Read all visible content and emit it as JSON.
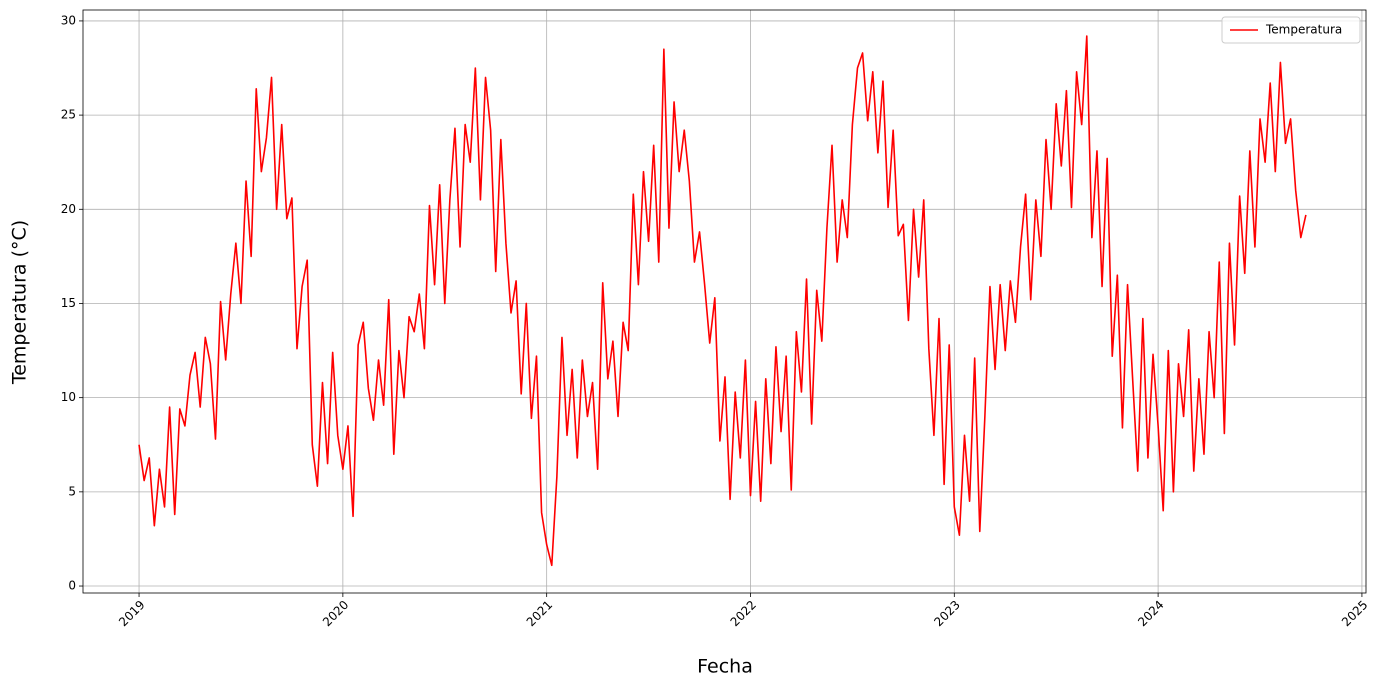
{
  "chart_data": {
    "type": "line",
    "x_label": "Fecha",
    "y_label": "Temperatura (°C)",
    "x": [
      2019,
      2019.025,
      2019.05,
      2019.075,
      2019.1,
      2019.125,
      2019.15,
      2019.175,
      2019.2,
      2019.225,
      2019.25,
      2019.275,
      2019.3,
      2019.325,
      2019.35,
      2019.375,
      2019.4,
      2019.425,
      2019.45,
      2019.475,
      2019.5,
      2019.525,
      2019.55,
      2019.575,
      2019.6,
      2019.625,
      2019.65,
      2019.675,
      2019.7,
      2019.725,
      2019.75,
      2019.775,
      2019.8,
      2019.825,
      2019.85,
      2019.875,
      2019.9,
      2019.925,
      2019.95,
      2019.975,
      2020,
      2020.025,
      2020.05,
      2020.075,
      2020.1,
      2020.125,
      2020.15,
      2020.175,
      2020.2,
      2020.225,
      2020.25,
      2020.275,
      2020.3,
      2020.325,
      2020.35,
      2020.375,
      2020.4,
      2020.425,
      2020.45,
      2020.475,
      2020.5,
      2020.525,
      2020.55,
      2020.575,
      2020.6,
      2020.625,
      2020.65,
      2020.675,
      2020.7,
      2020.725,
      2020.75,
      2020.775,
      2020.8,
      2020.825,
      2020.85,
      2020.875,
      2020.9,
      2020.925,
      2020.95,
      2020.975,
      2021,
      2021.025,
      2021.05,
      2021.075,
      2021.1,
      2021.125,
      2021.15,
      2021.175,
      2021.2,
      2021.225,
      2021.25,
      2021.275,
      2021.3,
      2021.325,
      2021.35,
      2021.375,
      2021.4,
      2021.425,
      2021.45,
      2021.475,
      2021.5,
      2021.525,
      2021.55,
      2021.575,
      2021.6,
      2021.625,
      2021.65,
      2021.675,
      2021.7,
      2021.725,
      2021.75,
      2021.775,
      2021.8,
      2021.825,
      2021.85,
      2021.875,
      2021.9,
      2021.925,
      2021.95,
      2021.975,
      2022,
      2022.025,
      2022.05,
      2022.075,
      2022.1,
      2022.125,
      2022.15,
      2022.175,
      2022.2,
      2022.225,
      2022.25,
      2022.275,
      2022.3,
      2022.325,
      2022.35,
      2022.375,
      2022.4,
      2022.425,
      2022.45,
      2022.475,
      2022.5,
      2022.525,
      2022.55,
      2022.575,
      2022.6,
      2022.625,
      2022.65,
      2022.675,
      2022.7,
      2022.725,
      2022.75,
      2022.775,
      2022.8,
      2022.825,
      2022.85,
      2022.875,
      2022.9,
      2022.925,
      2022.95,
      2022.975,
      2023,
      2023.025,
      2023.05,
      2023.075,
      2023.1,
      2023.125,
      2023.15,
      2023.175,
      2023.2,
      2023.225,
      2023.25,
      2023.275,
      2023.3,
      2023.325,
      2023.35,
      2023.375,
      2023.4,
      2023.425,
      2023.45,
      2023.475,
      2023.5,
      2023.525,
      2023.55,
      2023.575,
      2023.6,
      2023.625,
      2023.65,
      2023.675,
      2023.7,
      2023.725,
      2023.75,
      2023.775,
      2023.8,
      2023.825,
      2023.85,
      2023.875,
      2023.9,
      2023.925,
      2023.95,
      2023.975,
      2024,
      2024.025,
      2024.05,
      2024.075,
      2024.1,
      2024.125,
      2024.15,
      2024.175,
      2024.2,
      2024.225,
      2024.25,
      2024.275,
      2024.3,
      2024.325,
      2024.35,
      2024.375,
      2024.4,
      2024.425,
      2024.45,
      2024.475,
      2024.5,
      2024.525,
      2024.55,
      2024.575,
      2024.6,
      2024.625,
      2024.65,
      2024.675,
      2024.7,
      2024.725
    ],
    "series": [
      {
        "name": "Temperatura",
        "color": "#ff0000",
        "values": [
          7.5,
          5.6,
          6.8,
          3.2,
          6.2,
          4.2,
          9.5,
          3.8,
          9.4,
          8.5,
          11.2,
          12.4,
          9.5,
          13.2,
          11.8,
          7.8,
          15.1,
          12.0,
          15.5,
          18.2,
          15.0,
          21.5,
          17.5,
          26.4,
          22.0,
          23.8,
          27.0,
          20.0,
          24.5,
          19.5,
          20.6,
          12.6,
          15.9,
          17.3,
          7.5,
          5.3,
          10.8,
          6.5,
          12.4,
          8.0,
          6.2,
          8.5,
          3.7,
          12.8,
          14.0,
          10.5,
          8.8,
          12.0,
          9.6,
          15.2,
          7.0,
          12.5,
          10.0,
          14.3,
          13.5,
          15.5,
          12.6,
          20.2,
          16.0,
          21.3,
          15.0,
          20.5,
          24.3,
          18.0,
          24.5,
          22.5,
          27.5,
          20.5,
          27.0,
          24.2,
          16.7,
          23.7,
          18.2,
          14.5,
          16.2,
          10.2,
          15.0,
          8.9,
          12.2,
          3.9,
          2.2,
          1.1,
          5.8,
          13.2,
          8.0,
          11.5,
          6.8,
          12.0,
          9.0,
          10.8,
          6.2,
          16.1,
          11.0,
          13.0,
          9.0,
          14.0,
          12.5,
          20.8,
          16.0,
          22.0,
          18.3,
          23.4,
          17.2,
          28.5,
          19.0,
          25.7,
          22.0,
          24.2,
          21.5,
          17.2,
          18.8,
          16.0,
          12.9,
          15.3,
          7.7,
          11.1,
          4.6,
          10.3,
          6.8,
          12.0,
          4.8,
          9.8,
          4.5,
          11.0,
          6.5,
          12.7,
          8.2,
          12.2,
          5.1,
          13.5,
          10.3,
          16.3,
          8.6,
          15.7,
          13.0,
          19.0,
          23.4,
          17.2,
          20.5,
          18.5,
          24.5,
          27.5,
          28.3,
          24.7,
          27.3,
          23.0,
          26.8,
          20.1,
          24.2,
          18.6,
          19.2,
          14.1,
          20.0,
          16.4,
          20.5,
          12.6,
          8.0,
          14.2,
          5.4,
          12.8,
          4.2,
          2.7,
          8.0,
          4.5,
          12.1,
          2.9,
          9.0,
          15.9,
          11.5,
          16.0,
          12.5,
          16.2,
          14.0,
          18.0,
          20.8,
          15.2,
          20.5,
          17.5,
          23.7,
          20.0,
          25.6,
          22.3,
          26.3,
          20.1,
          27.3,
          24.5,
          29.2,
          18.5,
          23.1,
          15.9,
          22.7,
          12.2,
          16.5,
          8.4,
          16.0,
          11.0,
          6.1,
          14.2,
          6.8,
          12.3,
          8.5,
          4.0,
          12.5,
          5.0,
          11.8,
          9.0,
          13.6,
          6.1,
          11.0,
          7.0,
          13.5,
          10.0,
          17.2,
          8.1,
          18.2,
          12.8,
          20.7,
          16.6,
          23.1,
          18.0,
          24.8,
          22.5,
          26.7,
          22.0,
          27.8,
          23.5,
          24.8,
          21.0,
          18.5,
          19.7
        ]
      }
    ],
    "xlim": [
      2018.725,
      2025.02
    ],
    "xticks": [
      2019,
      2020,
      2021,
      2022,
      2023,
      2024,
      2025
    ],
    "ylim": [
      -0.37,
      30.58
    ],
    "yticks": [
      0,
      5,
      10,
      15,
      20,
      25,
      30
    ],
    "grid": true,
    "legend": "upper right"
  }
}
